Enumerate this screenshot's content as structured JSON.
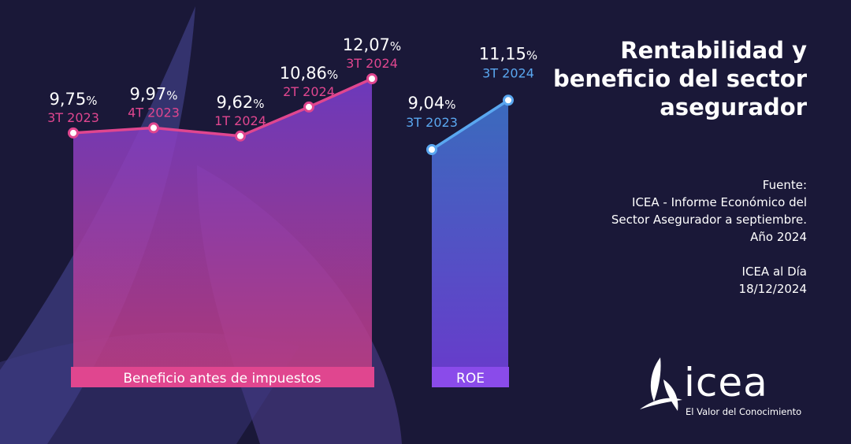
{
  "title_lines": [
    "Rentabilidad y",
    "beneficio del sector",
    "asegurador"
  ],
  "source_lines": [
    "Fuente:",
    "ICEA - Informe Económico del",
    "Sector Asegurador a septiembre.",
    "Año 2024",
    "",
    "ICEA al Día",
    "18/12/2024"
  ],
  "logo": {
    "text": "icea",
    "tagline": "El Valor del Conocimiento"
  },
  "colors": {
    "background": "#1a1838",
    "beneficio": "#e0468f",
    "roe": "#5aa7f0",
    "roe_band": "#8a4bea"
  },
  "chart_data": [
    {
      "type": "area",
      "name": "Beneficio antes de impuestos",
      "categories": [
        "3T 2023",
        "4T 2023",
        "1T 2024",
        "2T 2024",
        "3T 2024"
      ],
      "values": [
        9.75,
        9.97,
        9.62,
        10.86,
        12.07
      ],
      "value_labels": [
        "9,75",
        "9,97",
        "9,62",
        "10,86",
        "12,07"
      ],
      "unit": "%"
    },
    {
      "type": "area",
      "name": "ROE",
      "categories": [
        "3T 2023",
        "3T 2024"
      ],
      "values": [
        9.04,
        11.15
      ],
      "value_labels": [
        "9,04",
        "11,15"
      ],
      "unit": "%"
    }
  ]
}
